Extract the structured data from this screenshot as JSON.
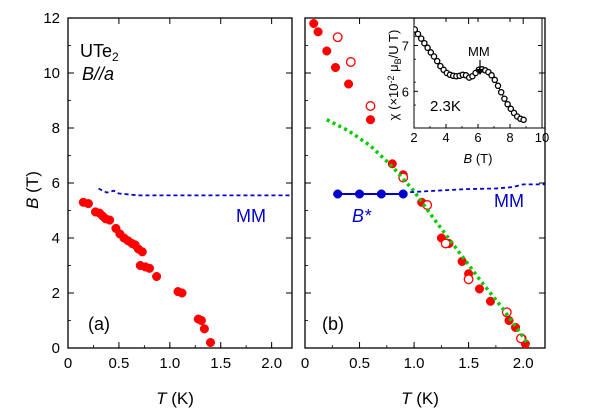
{
  "chart_data": [
    {
      "type": "scatter",
      "panel_label": "(a)",
      "material_label": {
        "main": "UTe",
        "sub": "2"
      },
      "field_label": "B//a",
      "xlabel": "T (K)",
      "ylabel": "B (T)",
      "xlim": [
        0,
        2.2
      ],
      "ylim": [
        0,
        12
      ],
      "xticks": [
        "0",
        "0.5",
        "1.0",
        "1.5",
        "2.0"
      ],
      "yticks": [
        "0",
        "2",
        "4",
        "6",
        "8",
        "10",
        "12"
      ],
      "series": [
        {
          "marker": "filled-circle",
          "color": "#ff0000",
          "points": [
            [
              0.15,
              5.3
            ],
            [
              0.2,
              5.25
            ],
            [
              0.27,
              4.95
            ],
            [
              0.31,
              4.9
            ],
            [
              0.34,
              4.8
            ],
            [
              0.37,
              4.7
            ],
            [
              0.41,
              4.65
            ],
            [
              0.47,
              4.35
            ],
            [
              0.51,
              4.15
            ],
            [
              0.55,
              4.0
            ],
            [
              0.59,
              3.9
            ],
            [
              0.63,
              3.8
            ],
            [
              0.66,
              3.75
            ],
            [
              0.69,
              3.6
            ],
            [
              0.73,
              3.5
            ],
            [
              0.71,
              3.0
            ],
            [
              0.76,
              2.95
            ],
            [
              0.8,
              2.9
            ],
            [
              0.87,
              2.6
            ],
            [
              1.08,
              2.05
            ],
            [
              1.12,
              2.0
            ],
            [
              1.28,
              1.05
            ],
            [
              1.31,
              1.0
            ],
            [
              1.34,
              0.7
            ],
            [
              1.4,
              0.2
            ]
          ]
        },
        {
          "line": "dashed",
          "color": "#0000cc",
          "name": "MM",
          "points": [
            [
              0.3,
              5.8
            ],
            [
              0.38,
              5.65
            ],
            [
              0.45,
              5.72
            ],
            [
              0.5,
              5.62
            ],
            [
              0.6,
              5.58
            ],
            [
              0.7,
              5.55
            ],
            [
              1.0,
              5.55
            ],
            [
              1.5,
              5.55
            ],
            [
              2.0,
              5.55
            ],
            [
              2.2,
              5.55
            ]
          ]
        }
      ]
    },
    {
      "type": "scatter",
      "panel_label": "(b)",
      "xlabel": "T (K)",
      "xlim": [
        0,
        2.2
      ],
      "ylim": [
        0,
        12
      ],
      "xticks": [
        "0",
        "0.5",
        "1.0",
        "1.5",
        "2.0"
      ],
      "series": [
        {
          "marker": "filled-circle",
          "color": "#ff0000",
          "points": [
            [
              0.08,
              11.8
            ],
            [
              0.12,
              11.5
            ],
            [
              0.2,
              10.8
            ],
            [
              0.28,
              10.2
            ],
            [
              0.4,
              9.6
            ],
            [
              0.6,
              8.3
            ],
            [
              0.8,
              6.7
            ],
            [
              0.9,
              6.3
            ],
            [
              1.07,
              5.3
            ],
            [
              1.25,
              4.0
            ],
            [
              1.32,
              3.8
            ],
            [
              1.44,
              3.15
            ],
            [
              1.5,
              2.7
            ],
            [
              1.6,
              2.15
            ],
            [
              1.7,
              1.7
            ],
            [
              1.87,
              1.0
            ],
            [
              1.93,
              0.75
            ],
            [
              1.99,
              0.35
            ],
            [
              2.02,
              0.15
            ]
          ]
        },
        {
          "marker": "open-circle",
          "color": "#ff0000",
          "points": [
            [
              0.3,
              11.3
            ],
            [
              0.42,
              10.4
            ],
            [
              0.6,
              8.8
            ],
            [
              0.9,
              6.2
            ],
            [
              1.12,
              5.2
            ],
            [
              1.29,
              3.8
            ],
            [
              1.5,
              2.5
            ],
            [
              1.85,
              1.3
            ],
            [
              1.98,
              0.35
            ]
          ]
        },
        {
          "line": "dotted",
          "color": "#00cc00",
          "points": [
            [
              0.2,
              8.3
            ],
            [
              0.4,
              7.9
            ],
            [
              0.6,
              7.35
            ],
            [
              0.8,
              6.6
            ],
            [
              1.0,
              5.7
            ],
            [
              1.2,
              4.6
            ],
            [
              1.4,
              3.55
            ],
            [
              1.6,
              2.5
            ],
            [
              1.8,
              1.5
            ],
            [
              2.0,
              0.4
            ],
            [
              2.05,
              0.1
            ]
          ]
        },
        {
          "marker": "filled-circle-line",
          "color": "#0000cc",
          "name": "B*",
          "points": [
            [
              0.3,
              5.6
            ],
            [
              0.5,
              5.6
            ],
            [
              0.7,
              5.6
            ],
            [
              0.9,
              5.6
            ]
          ]
        },
        {
          "line": "dashed",
          "color": "#0000cc",
          "name": "MM",
          "points": [
            [
              0.9,
              5.65
            ],
            [
              1.2,
              5.72
            ],
            [
              1.5,
              5.78
            ],
            [
              1.75,
              5.8
            ],
            [
              1.9,
              5.85
            ],
            [
              2.0,
              5.95
            ],
            [
              2.2,
              5.95
            ]
          ]
        }
      ],
      "inset": {
        "type": "scatter",
        "annotation": "2.3K",
        "arrow_label": "MM",
        "xlabel": "B (T)",
        "ylabel": "χ (×10⁻² μB/U T)",
        "xlim": [
          2,
          10
        ],
        "ylim": [
          5.2,
          7.6
        ],
        "xticks": [
          "2",
          "4",
          "6",
          "8",
          "10"
        ],
        "yticks": [
          "6",
          "7"
        ],
        "series": [
          {
            "marker": "open-circle",
            "color": "#000000",
            "points": [
              [
                2.05,
                7.35
              ],
              [
                2.25,
                7.25
              ],
              [
                2.45,
                7.15
              ],
              [
                2.65,
                7.05
              ],
              [
                2.85,
                6.95
              ],
              [
                3.05,
                6.85
              ],
              [
                3.25,
                6.76
              ],
              [
                3.45,
                6.66
              ],
              [
                3.65,
                6.55
              ],
              [
                3.85,
                6.47
              ],
              [
                4.05,
                6.4
              ],
              [
                4.25,
                6.36
              ],
              [
                4.45,
                6.34
              ],
              [
                4.65,
                6.33
              ],
              [
                4.85,
                6.34
              ],
              [
                5.05,
                6.36
              ],
              [
                5.25,
                6.35
              ],
              [
                5.45,
                6.3
              ],
              [
                5.65,
                6.33
              ],
              [
                5.85,
                6.4
              ],
              [
                6.05,
                6.47
              ],
              [
                6.25,
                6.48
              ],
              [
                6.45,
                6.46
              ],
              [
                6.65,
                6.42
              ],
              [
                6.85,
                6.35
              ],
              [
                7.05,
                6.25
              ],
              [
                7.25,
                6.12
              ],
              [
                7.45,
                5.98
              ],
              [
                7.65,
                5.84
              ],
              [
                7.85,
                5.72
              ],
              [
                8.05,
                5.62
              ],
              [
                8.25,
                5.53
              ],
              [
                8.45,
                5.45
              ],
              [
                8.65,
                5.4
              ],
              [
                8.85,
                5.38
              ]
            ]
          }
        ]
      }
    }
  ]
}
